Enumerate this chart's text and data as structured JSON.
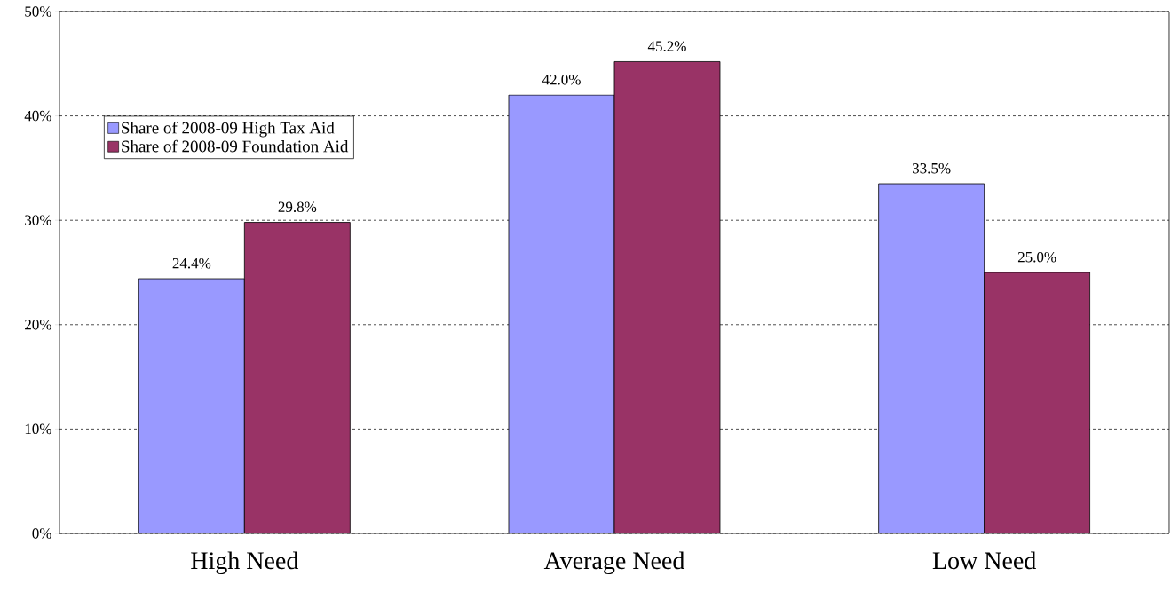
{
  "chart_data": {
    "type": "bar",
    "categories": [
      "High Need",
      "Average Need",
      "Low Need"
    ],
    "series": [
      {
        "name": "Share of 2008-09 High Tax Aid",
        "color": "#9999ff",
        "values": [
          24.4,
          42.0,
          33.5
        ],
        "value_labels": [
          "24.4%",
          "42.0%",
          "33.5%"
        ]
      },
      {
        "name": "Share of 2008-09 Foundation Aid",
        "color": "#993366",
        "values": [
          29.8,
          45.2,
          25.0
        ],
        "value_labels": [
          "29.8%",
          "45.2%",
          "25.0%"
        ]
      }
    ],
    "ylim": [
      0,
      50
    ],
    "yticks": [
      {
        "value": 0,
        "label": "0%"
      },
      {
        "value": 10,
        "label": "10%"
      },
      {
        "value": 20,
        "label": "20%"
      },
      {
        "value": 30,
        "label": "30%"
      },
      {
        "value": 40,
        "label": "40%"
      },
      {
        "value": 50,
        "label": "50%"
      }
    ],
    "grid": "y",
    "legend": "top left"
  }
}
